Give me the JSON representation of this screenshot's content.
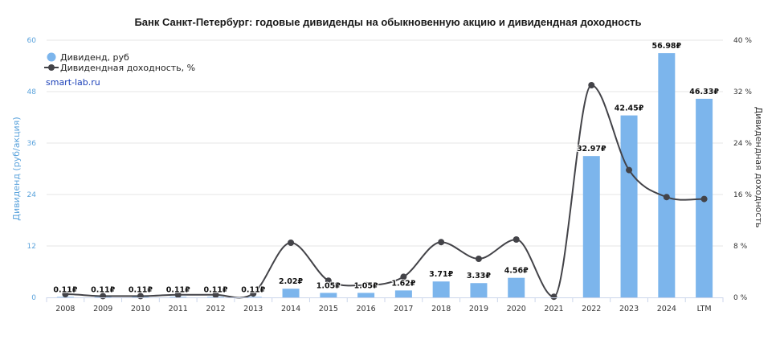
{
  "colors": {
    "bar": "#7cb5ec",
    "line": "#434348",
    "grid": "#e6e6e6",
    "left_axis_text": "#5ba3dc"
  },
  "chart_data": {
    "type": "bar",
    "title": "Банк Санкт-Петербург: годовые дивиденды на обыкновенную акцию и дивидендная доходность",
    "credit": "smart-lab.ru",
    "categories": [
      "2008",
      "2009",
      "2010",
      "2011",
      "2012",
      "2013",
      "2014",
      "2015",
      "2016",
      "2017",
      "2018",
      "2019",
      "2020",
      "2021",
      "2022",
      "2023",
      "2024",
      "LTM"
    ],
    "series": [
      {
        "name": "Дивиденд, руб",
        "type": "bar",
        "axis": "left",
        "values": [
          0.11,
          0.11,
          0.11,
          0.11,
          0.11,
          0.11,
          2.02,
          1.05,
          1.05,
          1.62,
          3.71,
          3.33,
          4.56,
          0,
          32.97,
          42.45,
          56.98,
          46.33
        ],
        "labels": [
          "0.11₽",
          "0.11₽",
          "0.11₽",
          "0.11₽",
          "0.11₽",
          "0.11₽",
          "2.02₽",
          "1.05₽",
          "1.05₽",
          "1.62₽",
          "3.71₽",
          "3.33₽",
          "4.56₽",
          "",
          "32.97₽",
          "42.45₽",
          "56.98₽",
          "46.33₽"
        ]
      },
      {
        "name": "Дивидендная доходность, %",
        "type": "line",
        "axis": "right",
        "values": [
          0.5,
          0.2,
          0.2,
          0.4,
          0.4,
          0.6,
          8.5,
          2.6,
          1.9,
          3.2,
          8.6,
          6.0,
          9.0,
          0.1,
          33.0,
          19.8,
          15.6,
          15.3
        ]
      }
    ],
    "yaxis_left": {
      "label": "Дивиденд (руб/акция)",
      "ylim": [
        0,
        60
      ],
      "ticks": [
        0,
        12,
        24,
        36,
        48,
        60
      ]
    },
    "yaxis_right": {
      "label": "Дивидендная доходность",
      "ylim": [
        0,
        40
      ],
      "ticks": [
        0,
        8,
        16,
        24,
        32,
        40
      ],
      "tick_labels": [
        "0 %",
        "8 %",
        "16 %",
        "24 %",
        "32 %",
        "40 %"
      ]
    },
    "grid": true,
    "legend_position": "top-left"
  }
}
